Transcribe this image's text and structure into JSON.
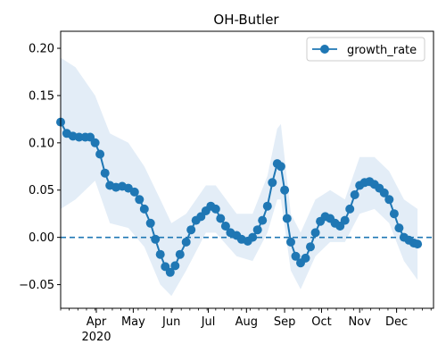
{
  "chart_data": {
    "type": "line",
    "title": "OH-Butler",
    "xlabel": "",
    "ylabel": "",
    "x_range": [
      "2020-03-03",
      "2020-12-31"
    ],
    "ylim": [
      -0.075,
      0.218
    ],
    "yticks": [
      -0.05,
      0.0,
      0.05,
      0.1,
      0.15,
      0.2
    ],
    "ytick_labels": [
      "−0.05",
      "0.00",
      "0.05",
      "0.10",
      "0.15",
      "0.20"
    ],
    "xticks": [
      "2020-04-01",
      "2020-05-01",
      "2020-06-01",
      "2020-07-01",
      "2020-08-01",
      "2020-09-01",
      "2020-10-01",
      "2020-11-01",
      "2020-12-01"
    ],
    "xtick_labels": [
      "Apr",
      "May",
      "Jun",
      "Jul",
      "Aug",
      "Sep",
      "Oct",
      "Nov",
      "Dec"
    ],
    "year_label": "2020",
    "grid": false,
    "legend": {
      "placement": "top-right",
      "entries": [
        "growth_rate"
      ]
    },
    "reference_line": {
      "y": 0.0,
      "style": "dashed"
    },
    "colors": {
      "series": "#1f77b4",
      "band": "#dce9f5"
    },
    "series": [
      {
        "name": "growth_rate",
        "marker": "circle",
        "points": [
          [
            "2020-03-03",
            0.122
          ],
          [
            "2020-03-08",
            0.11
          ],
          [
            "2020-03-13",
            0.107
          ],
          [
            "2020-03-18",
            0.106
          ],
          [
            "2020-03-23",
            0.106
          ],
          [
            "2020-03-27",
            0.106
          ],
          [
            "2020-03-31",
            0.1
          ],
          [
            "2020-04-04",
            0.088
          ],
          [
            "2020-04-08",
            0.068
          ],
          [
            "2020-04-12",
            0.055
          ],
          [
            "2020-04-17",
            0.053
          ],
          [
            "2020-04-22",
            0.054
          ],
          [
            "2020-04-27",
            0.052
          ],
          [
            "2020-05-02",
            0.048
          ],
          [
            "2020-05-06",
            0.04
          ],
          [
            "2020-05-10",
            0.03
          ],
          [
            "2020-05-15",
            0.015
          ],
          [
            "2020-05-19",
            -0.002
          ],
          [
            "2020-05-23",
            -0.018
          ],
          [
            "2020-05-27",
            -0.031
          ],
          [
            "2020-05-31",
            -0.037
          ],
          [
            "2020-06-04",
            -0.03
          ],
          [
            "2020-06-08",
            -0.018
          ],
          [
            "2020-06-13",
            -0.005
          ],
          [
            "2020-06-17",
            0.008
          ],
          [
            "2020-06-21",
            0.018
          ],
          [
            "2020-06-25",
            0.022
          ],
          [
            "2020-06-29",
            0.028
          ],
          [
            "2020-07-03",
            0.033
          ],
          [
            "2020-07-07",
            0.03
          ],
          [
            "2020-07-11",
            0.02
          ],
          [
            "2020-07-15",
            0.012
          ],
          [
            "2020-07-19",
            0.005
          ],
          [
            "2020-07-24",
            0.002
          ],
          [
            "2020-07-28",
            -0.002
          ],
          [
            "2020-08-02",
            -0.004
          ],
          [
            "2020-08-06",
            0.0
          ],
          [
            "2020-08-10",
            0.008
          ],
          [
            "2020-08-14",
            0.018
          ],
          [
            "2020-08-18",
            0.033
          ],
          [
            "2020-08-22",
            0.058
          ],
          [
            "2020-08-26",
            0.078
          ],
          [
            "2020-08-29",
            0.075
          ],
          [
            "2020-09-01",
            0.05
          ],
          [
            "2020-09-03",
            0.02
          ],
          [
            "2020-09-06",
            -0.005
          ],
          [
            "2020-09-10",
            -0.02
          ],
          [
            "2020-09-14",
            -0.027
          ],
          [
            "2020-09-18",
            -0.022
          ],
          [
            "2020-09-22",
            -0.01
          ],
          [
            "2020-09-26",
            0.005
          ],
          [
            "2020-09-30",
            0.017
          ],
          [
            "2020-10-04",
            0.022
          ],
          [
            "2020-10-08",
            0.02
          ],
          [
            "2020-10-12",
            0.015
          ],
          [
            "2020-10-16",
            0.012
          ],
          [
            "2020-10-20",
            0.018
          ],
          [
            "2020-10-24",
            0.03
          ],
          [
            "2020-10-28",
            0.045
          ],
          [
            "2020-11-01",
            0.055
          ],
          [
            "2020-11-05",
            0.058
          ],
          [
            "2020-11-09",
            0.059
          ],
          [
            "2020-11-13",
            0.056
          ],
          [
            "2020-11-17",
            0.052
          ],
          [
            "2020-11-21",
            0.047
          ],
          [
            "2020-11-25",
            0.04
          ],
          [
            "2020-11-29",
            0.025
          ],
          [
            "2020-12-03",
            0.01
          ],
          [
            "2020-12-07",
            0.0
          ],
          [
            "2020-12-11",
            -0.003
          ],
          [
            "2020-12-15",
            -0.006
          ],
          [
            "2020-12-18",
            -0.007
          ]
        ]
      }
    ],
    "confidence_band": [
      [
        "2020-03-03",
        0.03,
        0.19
      ],
      [
        "2020-03-15",
        0.04,
        0.18
      ],
      [
        "2020-03-31",
        0.06,
        0.15
      ],
      [
        "2020-04-12",
        0.015,
        0.11
      ],
      [
        "2020-04-27",
        0.01,
        0.1
      ],
      [
        "2020-05-10",
        -0.01,
        0.075
      ],
      [
        "2020-05-23",
        -0.05,
        0.04
      ],
      [
        "2020-06-01",
        -0.062,
        0.015
      ],
      [
        "2020-06-13",
        -0.035,
        0.025
      ],
      [
        "2020-06-29",
        0.005,
        0.055
      ],
      [
        "2020-07-07",
        0.005,
        0.055
      ],
      [
        "2020-07-24",
        -0.02,
        0.025
      ],
      [
        "2020-08-06",
        -0.025,
        0.025
      ],
      [
        "2020-08-18",
        0.005,
        0.065
      ],
      [
        "2020-08-26",
        0.04,
        0.115
      ],
      [
        "2020-08-29",
        0.04,
        0.12
      ],
      [
        "2020-09-06",
        -0.035,
        0.025
      ],
      [
        "2020-09-14",
        -0.055,
        0.005
      ],
      [
        "2020-09-26",
        -0.02,
        0.04
      ],
      [
        "2020-10-08",
        -0.005,
        0.05
      ],
      [
        "2020-10-20",
        -0.005,
        0.04
      ],
      [
        "2020-11-01",
        0.025,
        0.085
      ],
      [
        "2020-11-13",
        0.03,
        0.085
      ],
      [
        "2020-11-25",
        0.015,
        0.07
      ],
      [
        "2020-12-07",
        -0.025,
        0.04
      ],
      [
        "2020-12-18",
        -0.045,
        0.03
      ]
    ]
  }
}
